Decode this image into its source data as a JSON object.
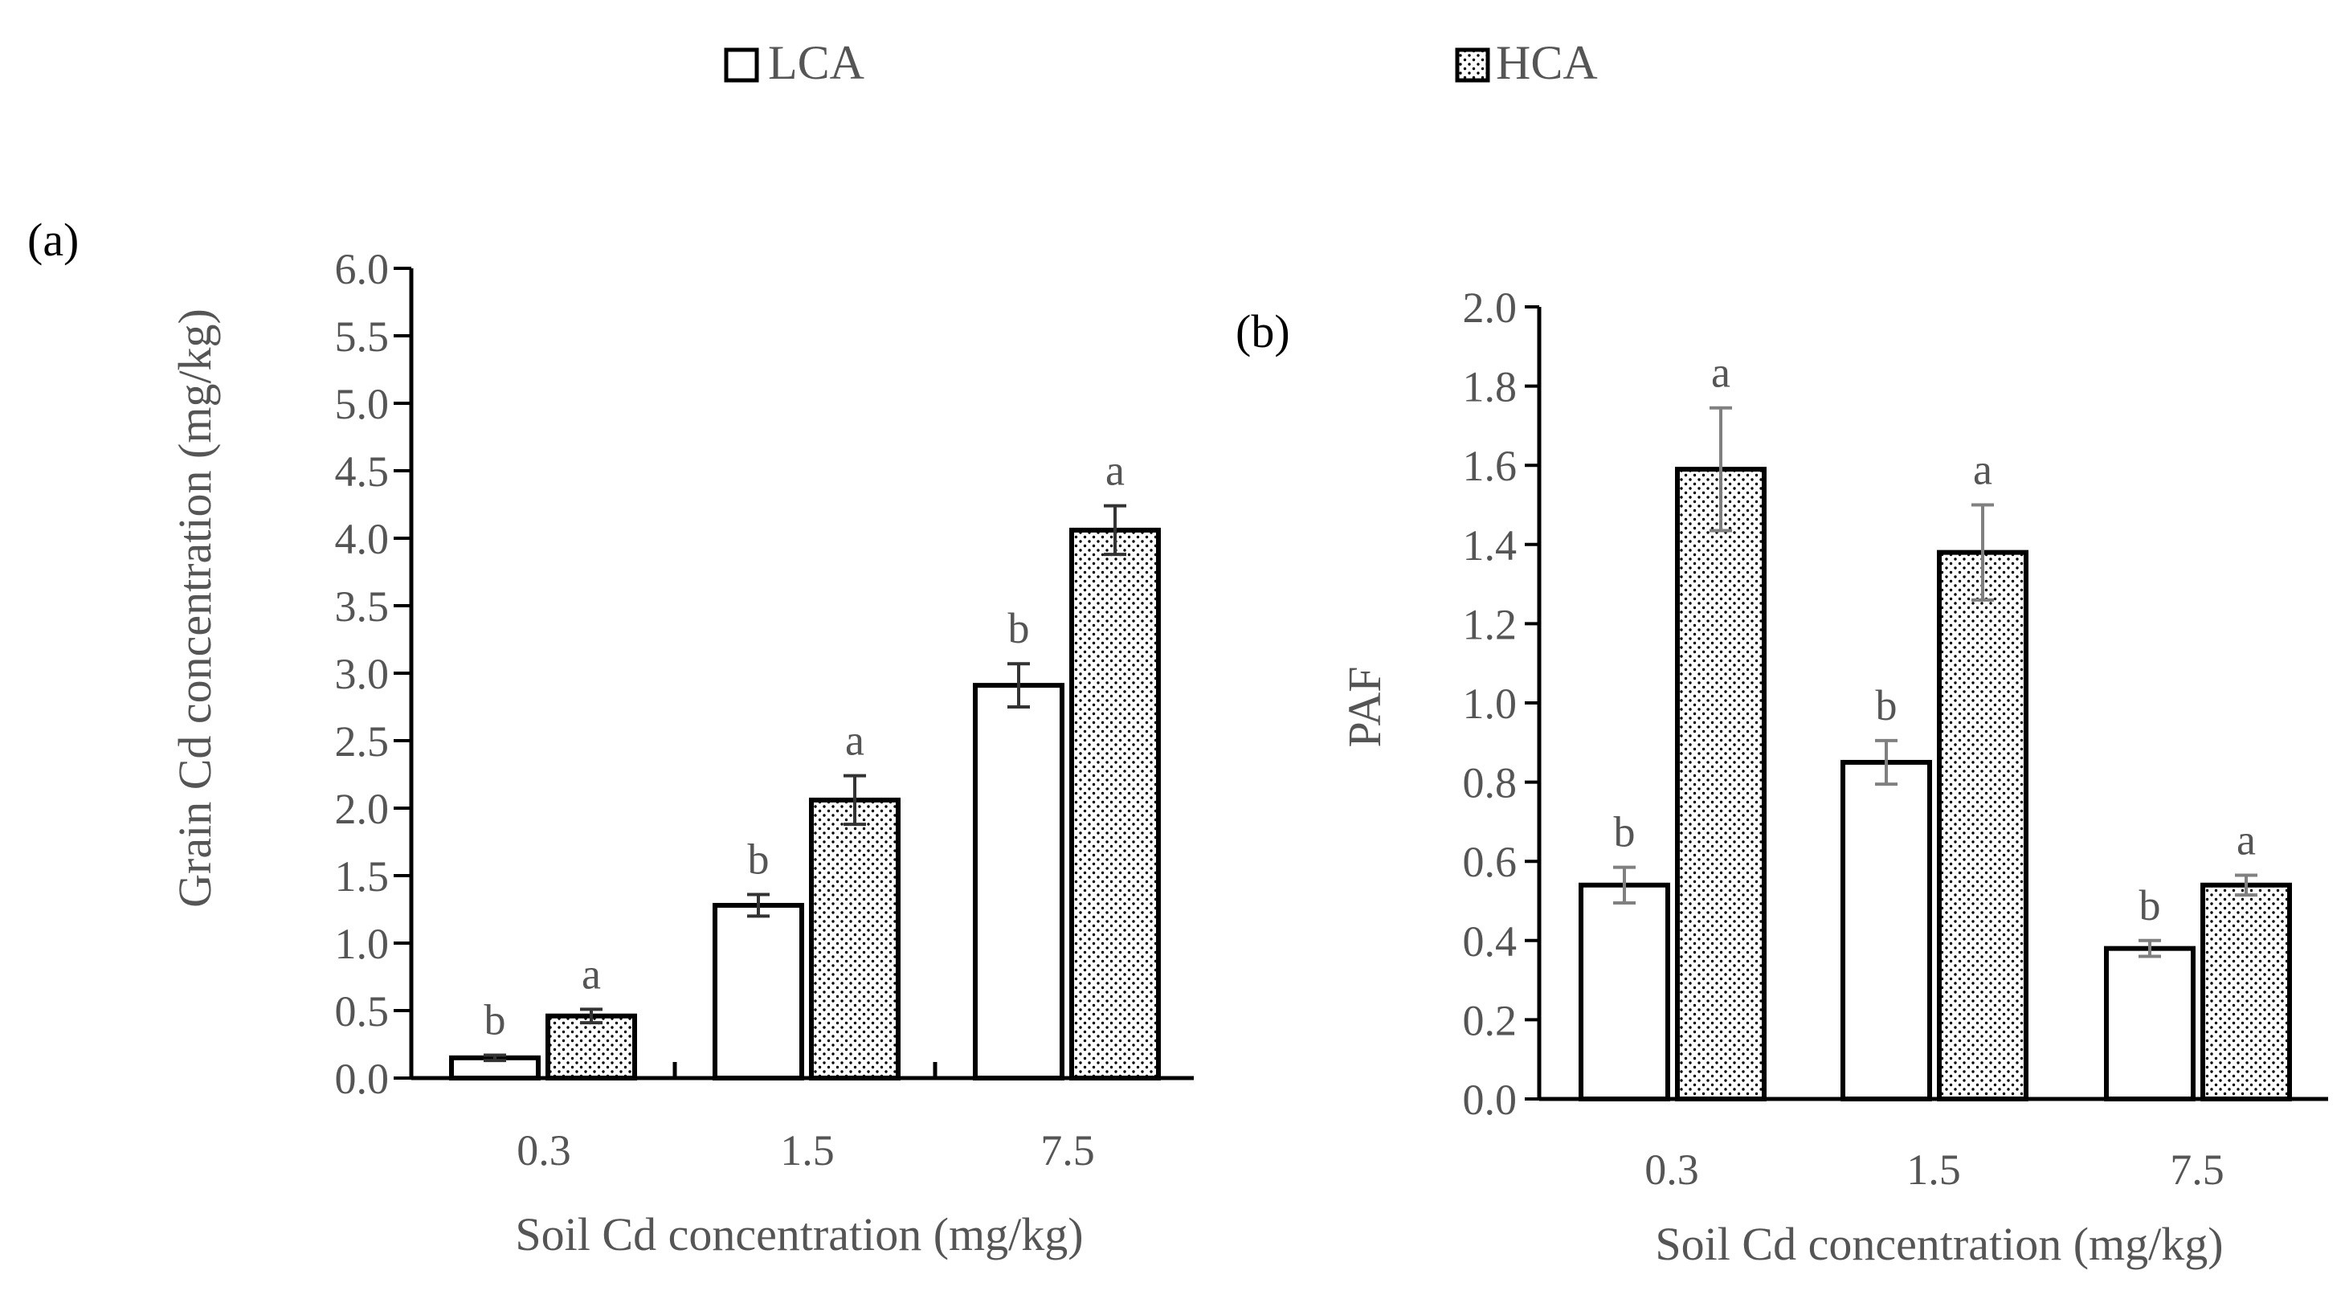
{
  "legend": {
    "position": "top-center",
    "entries": [
      {
        "name": "LCA",
        "pattern": "open"
      },
      {
        "name": "HCA",
        "pattern": "dotted"
      }
    ]
  },
  "colors": {
    "axis": "#000000",
    "text": "#555555",
    "errorbar_a": "#333333",
    "errorbar_b": "#808080",
    "bar_fill": "#ffffff",
    "dot": "#000000"
  },
  "chart_data": [
    {
      "panel_label": "(a)",
      "type": "bar",
      "xlabel": "Soil Cd concentration (mg/kg)",
      "ylabel": "Grain Cd concentration (mg/kg)",
      "ylim": [
        0,
        6.0
      ],
      "ytick_step": 0.5,
      "yticks": [
        "0.0",
        "0.5",
        "1.0",
        "1.5",
        "2.0",
        "2.5",
        "3.0",
        "3.5",
        "4.0",
        "4.5",
        "5.0",
        "5.5",
        "6.0"
      ],
      "categories": [
        "0.3",
        "1.5",
        "7.5"
      ],
      "series": [
        {
          "name": "LCA",
          "values": [
            0.15,
            1.28,
            2.91
          ],
          "errors": [
            0.02,
            0.08,
            0.16
          ],
          "letters": [
            "b",
            "b",
            "b"
          ]
        },
        {
          "name": "HCA",
          "values": [
            0.46,
            2.06,
            4.06
          ],
          "errors": [
            0.05,
            0.18,
            0.18
          ],
          "letters": [
            "a",
            "a",
            "a"
          ]
        }
      ]
    },
    {
      "panel_label": "(b)",
      "type": "bar",
      "xlabel": "Soil Cd concentration (mg/kg)",
      "ylabel": "PAF",
      "ylim": [
        0,
        2.0
      ],
      "ytick_step": 0.2,
      "yticks": [
        "0.0",
        "0.2",
        "0.4",
        "0.6",
        "0.8",
        "1.0",
        "1.2",
        "1.4",
        "1.6",
        "1.8",
        "2.0"
      ],
      "categories": [
        "0.3",
        "1.5",
        "7.5"
      ],
      "series": [
        {
          "name": "LCA",
          "values": [
            0.54,
            0.85,
            0.38
          ],
          "errors": [
            0.045,
            0.055,
            0.02
          ],
          "letters": [
            "b",
            "b",
            "b"
          ]
        },
        {
          "name": "HCA",
          "values": [
            1.59,
            1.38,
            0.54
          ],
          "errors": [
            0.155,
            0.12,
            0.025
          ],
          "letters": [
            "a",
            "a",
            "a"
          ]
        }
      ]
    }
  ]
}
